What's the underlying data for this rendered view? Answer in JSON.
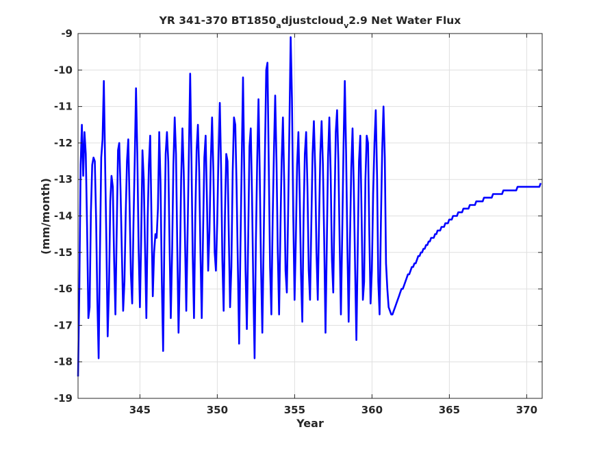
{
  "chart_data": {
    "type": "line",
    "title": "YR 341-370 BT1850",
    "title_sub1": "a",
    "title_mid": "djustcloud",
    "title_sub2": "v",
    "title_tail": "2.9 Net Water Flux",
    "xlabel": "Year",
    "ylabel": "(mm/month)",
    "xlim": [
      341,
      371
    ],
    "ylim": [
      -19,
      -9
    ],
    "xticks": [
      345,
      350,
      355,
      360,
      365,
      370
    ],
    "yticks": [
      -19,
      -18,
      -17,
      -16,
      -15,
      -14,
      -13,
      -12,
      -11,
      -10,
      -9
    ],
    "grid": true,
    "line_color": "#0000ff",
    "series": [
      {
        "x_start": 341.0,
        "x_step": 0.0833,
        "values": [
          -18.4,
          -16.0,
          -12.6,
          -11.5,
          -12.9,
          -11.7,
          -12.3,
          -14.3,
          -16.8,
          -16.5,
          -13.9,
          -12.6,
          -12.4,
          -12.5,
          -14.1,
          -16.3,
          -17.9,
          -15.0,
          -12.4,
          -11.9,
          -10.3,
          -12.5,
          -14.7,
          -17.3,
          -16.0,
          -13.6,
          -12.9,
          -13.2,
          -15.2,
          -16.7,
          -14.4,
          -12.2,
          -12.0,
          -13.3,
          -15.0,
          -16.6,
          -15.8,
          -13.9,
          -12.5,
          -11.9,
          -13.7,
          -15.6,
          -16.4,
          -14.2,
          -12.5,
          -10.5,
          -12.3,
          -14.9,
          -16.5,
          -14.7,
          -12.2,
          -13.0,
          -14.9,
          -16.8,
          -14.1,
          -12.6,
          -11.8,
          -14.1,
          -16.2,
          -15.0,
          -14.5,
          -14.6,
          -13.8,
          -11.7,
          -13.1,
          -15.8,
          -17.7,
          -14.7,
          -12.3,
          -11.7,
          -12.5,
          -14.8,
          -16.8,
          -15.0,
          -12.6,
          -11.3,
          -12.3,
          -14.9,
          -17.2,
          -15.5,
          -13.0,
          -11.6,
          -12.8,
          -14.7,
          -16.6,
          -14.5,
          -12.3,
          -10.1,
          -12.5,
          -15.1,
          -16.8,
          -14.0,
          -12.2,
          -11.5,
          -12.8,
          -15.0,
          -16.8,
          -14.5,
          -12.4,
          -11.8,
          -13.6,
          -15.5,
          -14.4,
          -12.5,
          -11.3,
          -12.8,
          -15.0,
          -15.5,
          -14.2,
          -12.3,
          -10.9,
          -12.7,
          -15.2,
          -16.6,
          -14.0,
          -12.3,
          -12.5,
          -14.6,
          -16.5,
          -15.4,
          -12.8,
          -11.3,
          -11.5,
          -13.2,
          -15.3,
          -17.5,
          -14.9,
          -12.5,
          -10.2,
          -12.9,
          -15.5,
          -17.1,
          -14.7,
          -12.1,
          -11.6,
          -13.4,
          -15.9,
          -17.9,
          -14.7,
          -12.5,
          -10.8,
          -12.8,
          -15.4,
          -17.2,
          -14.8,
          -12.3,
          -10.0,
          -9.8,
          -12.6,
          -15.4,
          -16.7,
          -14.1,
          -12.2,
          -10.7,
          -12.5,
          -15.0,
          -16.7,
          -14.4,
          -12.5,
          -11.3,
          -13.1,
          -15.5,
          -16.1,
          -13.9,
          -11.6,
          -9.1,
          -10.8,
          -14.0,
          -16.3,
          -14.6,
          -12.6,
          -11.7,
          -13.4,
          -15.6,
          -16.9,
          -14.0,
          -12.3,
          -11.7,
          -13.2,
          -15.5,
          -16.3,
          -14.3,
          -12.3,
          -11.4,
          -12.7,
          -15.0,
          -16.3,
          -14.2,
          -12.3,
          -11.4,
          -12.6,
          -14.7,
          -17.2,
          -14.9,
          -12.4,
          -11.3,
          -12.8,
          -15.2,
          -16.1,
          -13.8,
          -11.7,
          -11.1,
          -12.5,
          -14.8,
          -16.7,
          -14.5,
          -12.1,
          -10.3,
          -12.3,
          -14.9,
          -16.9,
          -14.7,
          -12.7,
          -11.6,
          -13.3,
          -15.5,
          -17.4,
          -15.0,
          -12.5,
          -11.8,
          -14.0,
          -16.3,
          -15.8,
          -13.0,
          -11.8,
          -12.0,
          -14.5,
          -16.4,
          -15.5,
          -13.4,
          -12.0,
          -11.1,
          -12.9,
          -15.8,
          -16.7,
          -14.2,
          -12.2,
          -11.0,
          -12.4,
          -15.3,
          -16.0,
          -16.5,
          -16.6,
          -16.7,
          -16.7,
          -16.6,
          -16.5,
          -16.4,
          -16.3,
          -16.2,
          -16.1,
          -16.0,
          -16.0,
          -15.9,
          -15.8,
          -15.7,
          -15.6,
          -15.6,
          -15.5,
          -15.4,
          -15.4,
          -15.3,
          -15.3,
          -15.2,
          -15.1,
          -15.1,
          -15.0,
          -15.0,
          -14.9,
          -14.9,
          -14.8,
          -14.8,
          -14.7,
          -14.7,
          -14.6,
          -14.6,
          -14.6,
          -14.5,
          -14.5,
          -14.4,
          -14.4,
          -14.4,
          -14.3,
          -14.3,
          -14.3,
          -14.2,
          -14.2,
          -14.2,
          -14.1,
          -14.1,
          -14.1,
          -14.0,
          -14.0,
          -14.0,
          -14.0,
          -13.9,
          -13.9,
          -13.9,
          -13.9,
          -13.8,
          -13.8,
          -13.8,
          -13.8,
          -13.8,
          -13.7,
          -13.7,
          -13.7,
          -13.7,
          -13.7,
          -13.6,
          -13.6,
          -13.6,
          -13.6,
          -13.6,
          -13.6,
          -13.5,
          -13.5,
          -13.5,
          -13.5,
          -13.5,
          -13.5,
          -13.5,
          -13.4,
          -13.4,
          -13.4,
          -13.4,
          -13.4,
          -13.4,
          -13.4,
          -13.4,
          -13.3,
          -13.3,
          -13.3,
          -13.3,
          -13.3,
          -13.3,
          -13.3,
          -13.3,
          -13.3,
          -13.3,
          -13.3,
          -13.2,
          -13.2,
          -13.2,
          -13.2,
          -13.2,
          -13.2,
          -13.2,
          -13.2,
          -13.2,
          -13.2,
          -13.2,
          -13.2,
          -13.2,
          -13.2,
          -13.2,
          -13.2,
          -13.2,
          -13.2,
          -13.1
        ]
      }
    ]
  }
}
